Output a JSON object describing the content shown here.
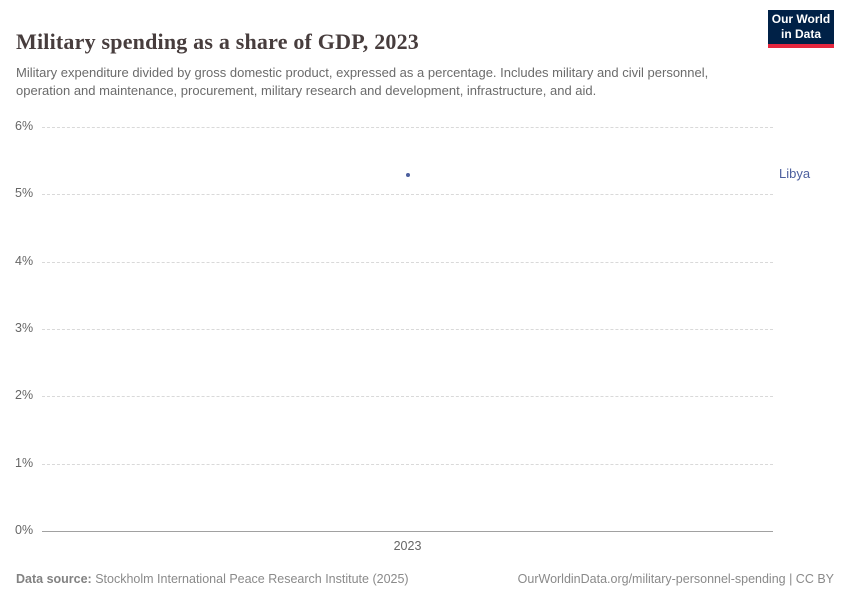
{
  "header": {
    "title": "Military spending as a share of GDP, 2023",
    "subtitle": "Military expenditure divided by gross domestic product, expressed as a percentage. Includes military and civil personnel, operation and maintenance, procurement, military research and development, infrastructure, and aid.",
    "logo": {
      "line1": "Our World",
      "line2": "in Data",
      "bg_color": "#002147",
      "accent_color": "#e5273e"
    }
  },
  "chart_data": {
    "type": "scatter",
    "title": "Military spending as a share of GDP, 2023",
    "xlabel": "",
    "ylabel": "",
    "ylim": [
      0,
      6
    ],
    "yticks": [
      0,
      1,
      2,
      3,
      4,
      5,
      6
    ],
    "ytick_suffix": "%",
    "xticks": [
      "2023"
    ],
    "grid": "dashed-horizontal",
    "series": [
      {
        "name": "Libya",
        "x": [
          2023
        ],
        "values": [
          5.29
        ],
        "color": "#4c5f9e"
      }
    ]
  },
  "footer": {
    "source_label": "Data source:",
    "source_text": "Stockholm International Peace Research Institute (2025)",
    "credit_text": "OurWorldinData.org/military-personnel-spending | CC BY"
  }
}
